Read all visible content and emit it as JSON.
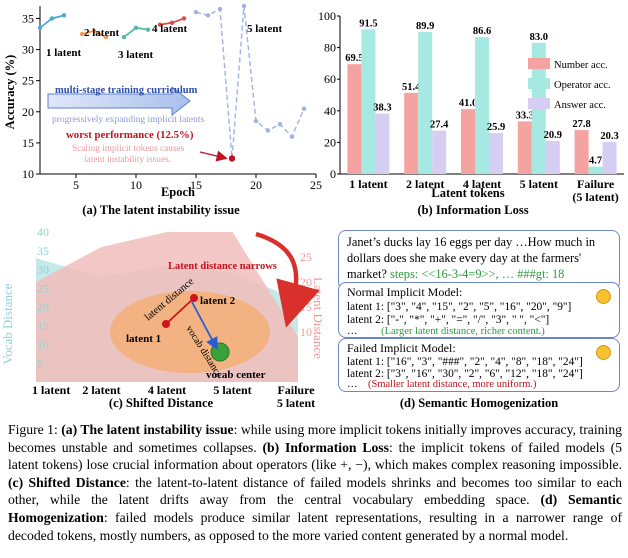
{
  "panel_a": {
    "caption": "(a) The latent instability issue",
    "labels": {
      "l1": "1 latent",
      "l2": "2 latent",
      "l3": "3 latent",
      "l4": "4 latent",
      "l5": "5 latent"
    },
    "curriculum": "multi-stage training curriculum",
    "progressive": "progressively expanding implicit latents",
    "worst": "worst performance (12.5%)",
    "scaling_1": "Scaling implicit tokens causes",
    "scaling_2": "latent instability issues.",
    "colors": {
      "line": "#9fb2e8",
      "dash": "#9fb2e8",
      "stage1": "#4aa8d8",
      "stage2": "#ef9a58",
      "stage3": "#55b8a8",
      "stage4": "#e04a4a",
      "red": "#c0131f"
    }
  },
  "panel_b": {
    "caption": "(b) Information Loss",
    "colors": {
      "number": "#f4a3a0",
      "operator": "#a6e8e2",
      "answer": "#d6cdf2"
    }
  },
  "panel_c": {
    "caption": "(c) Shifted Distance",
    "narrows": "Latent distance narrows",
    "latent_distance": "latent distance",
    "vocab_distance": "vocab distance",
    "latent1": "latent 1",
    "latent2": "latent 2",
    "vocab_center": "vocab center",
    "left_axis": "Vocab Distance",
    "right_axis": "Latent Distance",
    "left_ticks": [
      "40",
      "35",
      "30",
      "25",
      "20",
      "15",
      "10",
      "5"
    ],
    "right_ticks": [
      "25",
      "20",
      "15",
      "10"
    ],
    "x_ticks": [
      "1 latent",
      "2 latent",
      "4 latent",
      "5 latent",
      "Failure"
    ],
    "x_tick_sub": "5 latent"
  },
  "panel_d": {
    "caption": "(d) Semantic Homogenization",
    "question_1": "Janet’s ducks lay 16 eggs per day …How much in",
    "question_2": "dollars does she make every day at the farmers'",
    "question_3a": "market?",
    "question_3b": "steps: <<16-3-4=9>>, … ###gt: 18",
    "normal_title": "Normal Implicit Model:",
    "normal_l1": "latent 1: [\"3\", \"4\", \"15\", \"2\", \"5\", \"16\", \"20\", \"9\"]",
    "normal_l2": "latent 2: [\"-\", \"*\", \"+\", \"=\", \"/\", \"3\", \" \", \"<\"]",
    "normal_note_a": "…",
    "normal_note_b": "(Larger latent distance, richer content.)",
    "failed_title": "Failed Implicit Model:",
    "failed_l1": "latent 1: [\"16\", \"3\", \"###\", \"2\", \"4\", \"8\", \"18\", \"24\"]",
    "failed_l2": "latent 2: [\"3\", \"16\", \"30\", \"2\", \"6\", \"12\", \"18\", \"24\"]",
    "failed_note_a": "…",
    "failed_note_b": "(Smaller latent distance, more uniform.)"
  },
  "caption": {
    "fig": "Figure 1:",
    "a_bold": "(a) The latent instability issue",
    "a_text": ": while using more implicit tokens initially improves accuracy, training becomes unstable and sometimes collapses.",
    "b_bold": "(b) Information Loss",
    "b_text": ": the implicit tokens of failed models (5 latent tokens) lose crucial information about operators (like +, −), which makes complex reasoning impossible.",
    "c_bold": "(c) Shifted Distance",
    "c_text": ": the latent-to-latent distance of failed models shrinks and becomes too similar to each other, while the latent drifts away from the central vocabulary embedding space.",
    "d_bold": "(d) Semantic Homogenization",
    "d_text": ": failed models produce similar latent representations, resulting in a narrower range of decoded tokens, mostly numbers, as opposed to the more varied content generated by a normal model."
  },
  "chart_data": [
    {
      "type": "line",
      "title": "The latent instability issue",
      "xlabel": "Epoch",
      "ylabel": "Accuracy (%)",
      "xlim": [
        2,
        25
      ],
      "ylim": [
        10,
        37
      ],
      "xticks": [
        5,
        10,
        15,
        20,
        25
      ],
      "yticks": [
        10,
        15,
        20,
        25,
        30,
        35
      ],
      "series": [
        {
          "name": "1 latent",
          "x": [
            2,
            3,
            4
          ],
          "y": [
            33.5,
            35,
            35.5
          ]
        },
        {
          "name": "2 latent",
          "x": [
            5.5,
            6.5,
            7.5
          ],
          "y": [
            32.5,
            33,
            32
          ]
        },
        {
          "name": "3 latent",
          "x": [
            9,
            10,
            11
          ],
          "y": [
            32,
            33.5,
            33.2
          ]
        },
        {
          "name": "4 latent",
          "x": [
            12,
            13,
            14
          ],
          "y": [
            34,
            34.3,
            35
          ]
        },
        {
          "name": "5 latent",
          "x": [
            15,
            16,
            17,
            18,
            19,
            20,
            21,
            22,
            23,
            24
          ],
          "y": [
            36,
            35.5,
            36.5,
            12.5,
            37,
            18.5,
            17,
            18,
            16,
            20.5
          ]
        }
      ]
    },
    {
      "type": "bar",
      "title": "Information Loss",
      "xlabel": "Latent tokens",
      "ylabel": "",
      "ylim": [
        0,
        100
      ],
      "yticks": [
        0,
        20,
        40,
        60,
        80,
        100
      ],
      "categories": [
        "1 latent",
        "2 latent",
        "4 latent",
        "5 latent",
        "Failure"
      ],
      "category_sub": [
        "",
        "",
        "",
        "",
        "(5 latent)"
      ],
      "series": [
        {
          "name": "Number acc.",
          "values": [
            69.5,
            51.4,
            41.0,
            33.3,
            27.8
          ]
        },
        {
          "name": "Operator acc.",
          "values": [
            91.5,
            89.9,
            86.6,
            83.0,
            4.7
          ]
        },
        {
          "name": "Answer acc.",
          "values": [
            38.3,
            27.4,
            25.9,
            20.9,
            20.3
          ]
        }
      ],
      "value_labels": [
        [
          "69.5",
          "91.5",
          "38.3"
        ],
        [
          "51.4",
          "89.9",
          "27.4"
        ],
        [
          "41.0",
          "86.6",
          "25.9"
        ],
        [
          "33.3",
          "83.0",
          "20.9"
        ],
        [
          "27.8",
          "4.7",
          "20.3"
        ]
      ]
    },
    {
      "type": "area",
      "title": "Shifted Distance",
      "categories": [
        "1 latent",
        "2 latent",
        "4 latent",
        "5 latent",
        "Failure"
      ],
      "series": [
        {
          "name": "Vocab Distance",
          "axis": "left",
          "ylim": [
            0,
            40
          ],
          "values": [
            33,
            28,
            31,
            29,
            22
          ]
        },
        {
          "name": "Latent Distance",
          "axis": "right",
          "ylim": [
            0,
            30
          ],
          "values": [
            20,
            27,
            30,
            30,
            9
          ]
        }
      ]
    }
  ]
}
